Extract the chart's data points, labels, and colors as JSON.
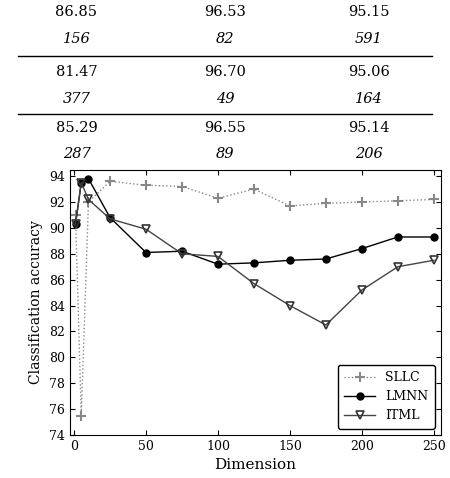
{
  "xlabel": "Dimension",
  "ylabel": "Classification accuracy",
  "ylim": [
    74,
    94.5
  ],
  "xlim": [
    -3,
    255
  ],
  "yticks": [
    74,
    76,
    78,
    80,
    82,
    84,
    86,
    88,
    90,
    92,
    94
  ],
  "xticks": [
    0,
    50,
    100,
    150,
    200,
    250
  ],
  "sllc_x": [
    1,
    5,
    10,
    25,
    50,
    75,
    100,
    125,
    150,
    175,
    200,
    225,
    250
  ],
  "sllc_y": [
    91.0,
    75.5,
    92.0,
    93.6,
    93.3,
    93.2,
    92.3,
    93.0,
    91.7,
    91.9,
    92.0,
    92.1,
    92.2
  ],
  "lmnn_x": [
    1,
    5,
    10,
    25,
    50,
    75,
    100,
    125,
    150,
    175,
    200,
    225,
    250
  ],
  "lmnn_y": [
    90.3,
    93.5,
    93.8,
    90.8,
    88.1,
    88.2,
    87.2,
    87.3,
    87.5,
    87.6,
    88.4,
    89.3,
    89.3
  ],
  "itml_x": [
    1,
    5,
    10,
    25,
    50,
    75,
    100,
    125,
    150,
    175,
    200,
    225,
    250
  ],
  "itml_y": [
    90.3,
    93.5,
    92.2,
    90.7,
    89.9,
    88.0,
    87.8,
    85.7,
    84.0,
    82.5,
    85.2,
    87.0,
    87.5
  ],
  "bg_color": "#ffffff",
  "table_rows": [
    [
      "86.85",
      "96.53",
      "95.15"
    ],
    [
      "156",
      "82",
      "591"
    ],
    [
      "81.47",
      "96.70",
      "95.06"
    ],
    [
      "377",
      "49",
      "164"
    ],
    [
      "85.29",
      "96.55",
      "95.14"
    ],
    [
      "287",
      "89",
      "206"
    ]
  ]
}
